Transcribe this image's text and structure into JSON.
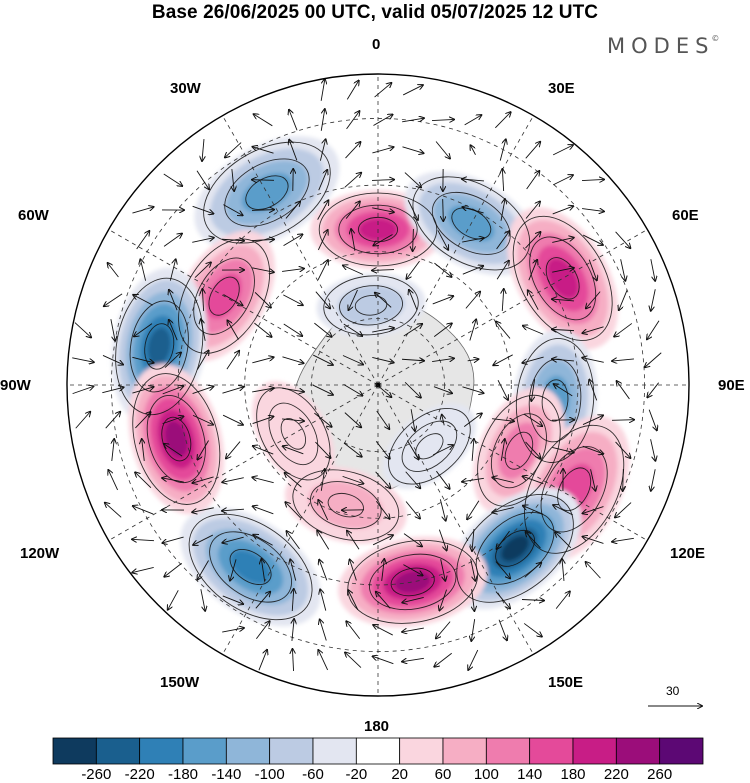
{
  "title": "Base 26/06/2025 00 UTC, valid 05/07/2025 12 UTC",
  "brand": "MODES",
  "brand_mark": "©",
  "longitude_labels": {
    "lon_0": "0",
    "lon_30e": "30E",
    "lon_60e": "60E",
    "lon_90e": "90E",
    "lon_120e": "120E",
    "lon_150e": "150E",
    "lon_180": "180",
    "lon_150w": "150W",
    "lon_120w": "120W",
    "lon_90w": "90W",
    "lon_60w": "60W",
    "lon_30w": "30W"
  },
  "reference_vector_label": "30",
  "colorbar": {
    "labels": [
      "-260",
      "-220",
      "-180",
      "-140",
      "-100",
      "-60",
      "-20",
      "20",
      "60",
      "100",
      "140",
      "180",
      "220",
      "260"
    ],
    "colors": [
      "#0e3a5e",
      "#1a5f8e",
      "#2f80b6",
      "#5a9dca",
      "#8fb6d9",
      "#bccbe3",
      "#e3e6f1",
      "#ffffff",
      "#fad6df",
      "#f6aec4",
      "#ef7cae",
      "#e44a9a",
      "#c81d86",
      "#9b0d7a",
      "#5c0874"
    ]
  },
  "map_colors": {
    "land": "#e6e6e6",
    "coast": "#6a6a6a",
    "grid": "#333333",
    "arrow": "#111111"
  },
  "anomaly_centers": [
    {
      "lon": 0,
      "lat": -55,
      "value": 180
    },
    {
      "lon": -30,
      "lat": -40,
      "value": -160
    },
    {
      "lon": 30,
      "lat": -48,
      "value": -140
    },
    {
      "lon": 60,
      "lat": -42,
      "value": 180
    },
    {
      "lon": -60,
      "lat": -50,
      "value": 150
    },
    {
      "lon": -80,
      "lat": -40,
      "value": -220
    },
    {
      "lon": -5,
      "lat": -72,
      "value": -80
    },
    {
      "lon": 95,
      "lat": -50,
      "value": -150
    },
    {
      "lon": 115,
      "lat": -55,
      "value": 120
    },
    {
      "lon": 118,
      "lat": -40,
      "value": 140
    },
    {
      "lon": 140,
      "lat": -42,
      "value": -260
    },
    {
      "lon": 170,
      "lat": -45,
      "value": 220
    },
    {
      "lon": -165,
      "lat": -62,
      "value": 90
    },
    {
      "lon": -145,
      "lat": -40,
      "value": -200
    },
    {
      "lon": -105,
      "lat": -43,
      "value": 240
    },
    {
      "lon": 140,
      "lat": -72,
      "value": -50
    },
    {
      "lon": -120,
      "lat": -68,
      "value": 50
    }
  ]
}
